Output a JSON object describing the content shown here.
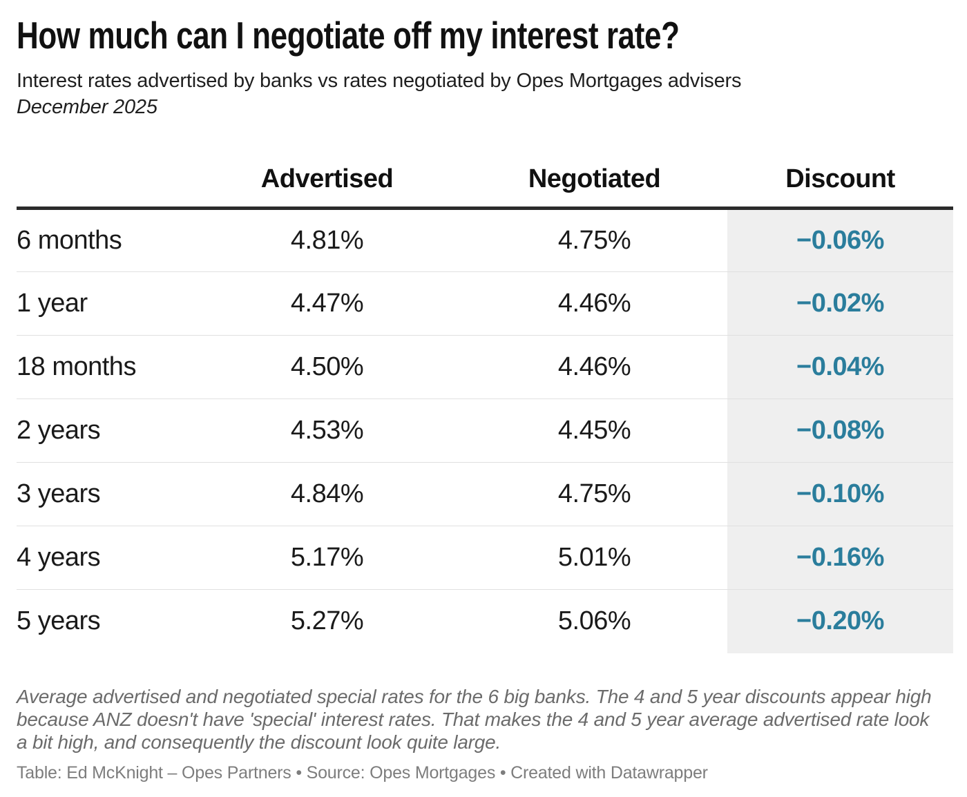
{
  "header": {
    "title": "How much can I negotiate off my interest rate?",
    "subtitle": "Interest rates advertised by banks vs rates negotiated by Opes Mortgages advisers",
    "date_line": "December 2025"
  },
  "chart_data": {
    "type": "table",
    "title": "How much can I negotiate off my interest rate?",
    "subtitle": "Interest rates advertised by banks vs rates negotiated by Opes Mortgages advisers",
    "date": "December 2025",
    "columns": [
      "",
      "Advertised",
      "Negotiated",
      "Discount"
    ],
    "rows": [
      [
        "6 months",
        "4.81%",
        "4.75%",
        "−0.06%"
      ],
      [
        "1 year",
        "4.47%",
        "4.46%",
        "−0.02%"
      ],
      [
        "18 months",
        "4.50%",
        "4.46%",
        "−0.04%"
      ],
      [
        "2 years",
        "4.53%",
        "4.45%",
        "−0.08%"
      ],
      [
        "3 years",
        "4.84%",
        "4.75%",
        "−0.10%"
      ],
      [
        "4 years",
        "5.17%",
        "5.01%",
        "−0.16%"
      ],
      [
        "5 years",
        "5.27%",
        "5.06%",
        "−0.20%"
      ]
    ],
    "rows_numeric": {
      "advertised": [
        4.81,
        4.47,
        4.5,
        4.53,
        4.84,
        5.17,
        5.27
      ],
      "negotiated": [
        4.75,
        4.46,
        4.46,
        4.45,
        4.75,
        5.01,
        5.06
      ],
      "discount": [
        -0.06,
        -0.02,
        -0.04,
        -0.08,
        -0.1,
        -0.16,
        -0.2
      ]
    },
    "highlight_column": "Discount"
  },
  "footer": {
    "note": "Average advertised and negotiated special rates for the 6 big banks. The 4 and 5 year discounts appear high because ANZ doesn't have 'special' interest rates. That makes the 4 and 5 year average advertised rate look a bit high, and consequently the discount look quite large.",
    "credit": "Table: Ed McKnight – Opes Partners • Source: Opes Mortgages • Created with Datawrapper"
  },
  "colors": {
    "discount_text": "#2a7d9c",
    "discount_column_bg": "#efefef",
    "header_rule": "#2b2b2b",
    "row_divider": "#e0e0e0"
  }
}
